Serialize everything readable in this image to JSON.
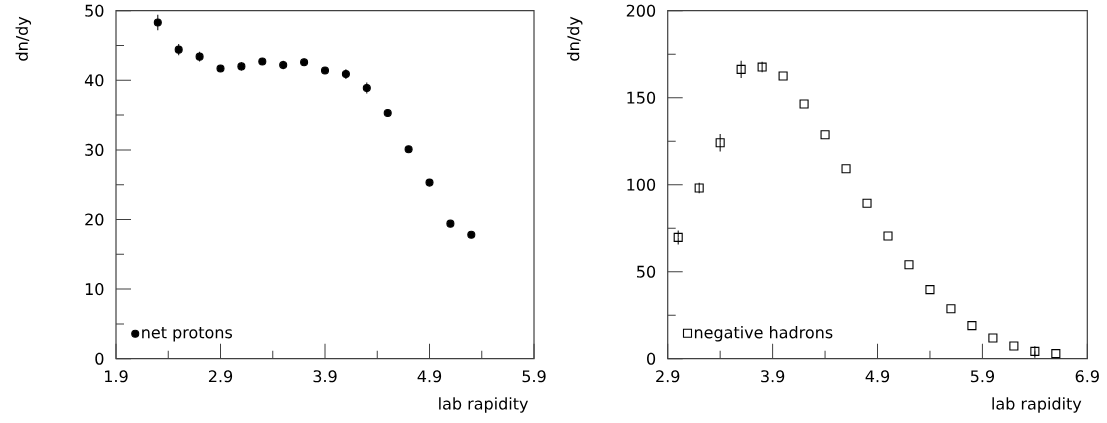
{
  "chart_data": [
    {
      "type": "scatter",
      "xlabel": "lab rapidity",
      "ylabel": "dn/dy",
      "xlim": [
        1.9,
        5.9
      ],
      "ylim": [
        0,
        50
      ],
      "xticks": [
        1.9,
        2.9,
        3.9,
        4.9,
        5.9
      ],
      "yticks": [
        0,
        10,
        20,
        30,
        40,
        50
      ],
      "legend": "bottom left",
      "grid": false,
      "series": [
        {
          "name": "net protons",
          "color": "#000000",
          "marker": "circle",
          "x": [
            2.3,
            2.5,
            2.7,
            2.9,
            3.1,
            3.3,
            3.5,
            3.7,
            3.9,
            4.1,
            4.3,
            4.5,
            4.7,
            4.9,
            5.1,
            5.3
          ],
          "values": [
            48.3,
            44.4,
            43.4,
            41.7,
            42.0,
            42.7,
            42.2,
            42.6,
            41.4,
            40.9,
            38.9,
            35.3,
            30.1,
            25.3,
            19.4,
            17.8
          ],
          "errors": [
            1.1,
            0.8,
            0.7,
            0.4,
            0.6,
            0.5,
            0.6,
            0.5,
            0.4,
            0.7,
            0.8,
            null,
            null,
            null,
            null,
            null
          ]
        }
      ]
    },
    {
      "type": "scatter",
      "xlabel": "lab rapidity",
      "ylabel": "dn/dy",
      "xlim": [
        2.9,
        6.9
      ],
      "ylim": [
        0,
        200
      ],
      "xticks": [
        2.9,
        3.9,
        4.9,
        5.9,
        6.9
      ],
      "yticks": [
        0,
        50,
        100,
        150,
        200
      ],
      "legend": "bottom left",
      "grid": false,
      "series": [
        {
          "name": "negative hadrons",
          "color": "#000000",
          "marker": "square",
          "x": [
            3.0,
            3.2,
            3.4,
            3.6,
            3.8,
            4.0,
            4.2,
            4.4,
            4.6,
            4.8,
            5.0,
            5.2,
            5.4,
            5.6,
            5.8,
            6.0,
            6.2,
            6.4,
            6.6
          ],
          "values": [
            69.7,
            98.1,
            124.1,
            166.3,
            167.6,
            162.5,
            146.4,
            128.7,
            109.2,
            89.3,
            70.5,
            54.0,
            39.7,
            28.7,
            19.0,
            11.9,
            7.3,
            4.2,
            2.9
          ],
          "errors": [
            4,
            3,
            5,
            5,
            3,
            null,
            null,
            null,
            null,
            null,
            null,
            null,
            null,
            null,
            null,
            null,
            null,
            3,
            null
          ]
        }
      ]
    }
  ]
}
